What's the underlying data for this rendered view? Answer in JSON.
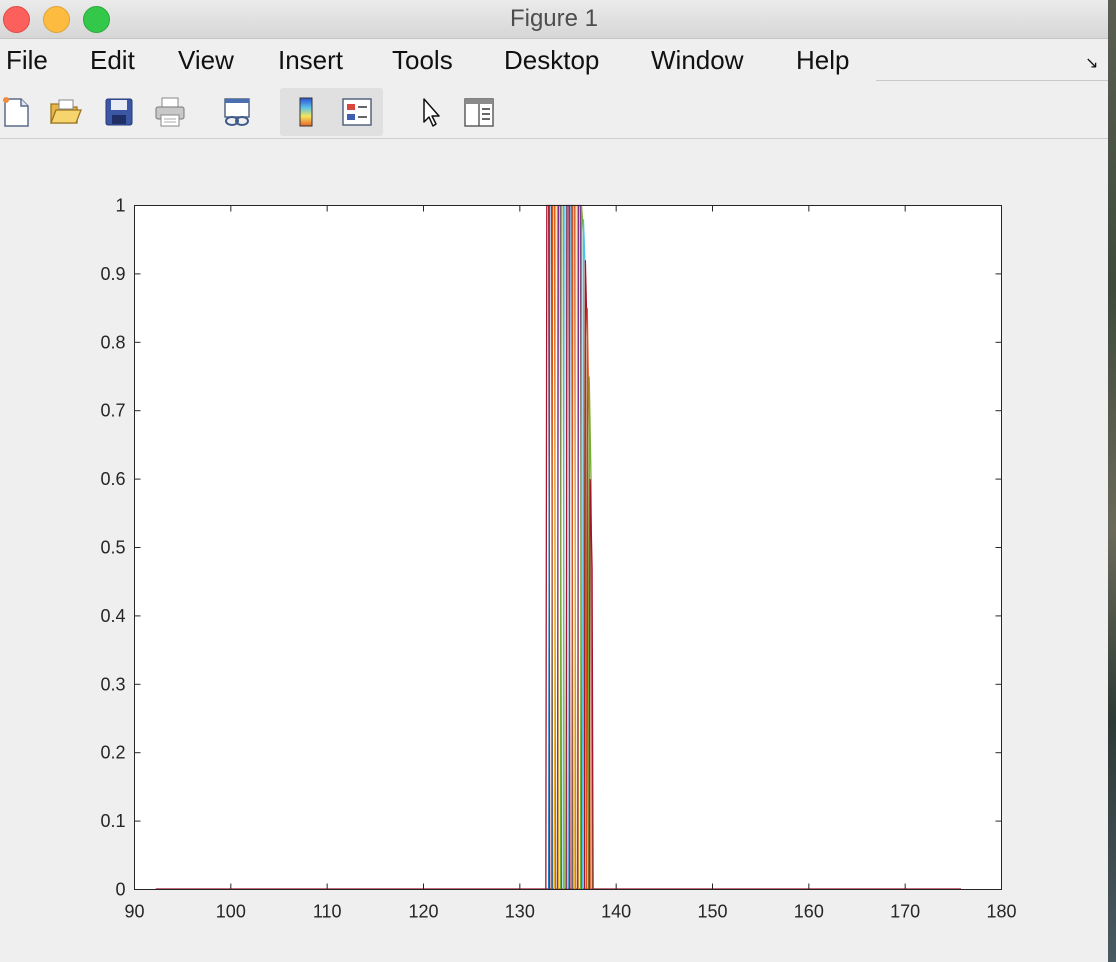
{
  "window": {
    "title": "Figure 1"
  },
  "menubar": {
    "items": [
      "File",
      "Edit",
      "View",
      "Insert",
      "Tools",
      "Desktop",
      "Window",
      "Help"
    ]
  },
  "toolbar": {
    "buttons": [
      {
        "icon": "new-figure-icon"
      },
      {
        "icon": "open-file-icon"
      },
      {
        "icon": "save-icon"
      },
      {
        "icon": "print-icon"
      },
      {
        "icon": "link-plot-icon"
      },
      {
        "icon": "insert-colorbar-icon"
      },
      {
        "icon": "insert-legend-icon"
      },
      {
        "icon": "edit-plot-pointer-icon"
      },
      {
        "icon": "property-inspector-icon"
      }
    ]
  },
  "chart_data": {
    "type": "line",
    "title": "",
    "xlabel": "",
    "ylabel": "",
    "xlim": [
      90,
      180
    ],
    "ylim": [
      0,
      1
    ],
    "xticks": [
      90,
      100,
      110,
      120,
      130,
      140,
      150,
      160,
      170,
      180
    ],
    "yticks": [
      0,
      0.1,
      0.2,
      0.3,
      0.4,
      0.5,
      0.6,
      0.7,
      0.8,
      0.9,
      1
    ],
    "ytick_labels": [
      "0",
      "0.1",
      "0.2",
      "0.3",
      "0.4",
      "0.5",
      "0.6",
      "0.7",
      "0.8",
      "0.9",
      "1"
    ],
    "xtick_labels": [
      "90",
      "100",
      "110",
      "120",
      "130",
      "140",
      "150",
      "160",
      "170",
      "180"
    ],
    "grid": false,
    "box": true,
    "baseline_range": [
      92.2,
      175.8
    ],
    "series": [
      {
        "color": "#A2142F",
        "x": [
          132.7,
          132.8,
          133.0,
          133.1
        ],
        "y": [
          0,
          1,
          1,
          0
        ]
      },
      {
        "color": "#0072BD",
        "x": [
          133.0,
          133.1,
          133.3,
          133.4
        ],
        "y": [
          0,
          1,
          1,
          0
        ]
      },
      {
        "color": "#D95319",
        "x": [
          133.3,
          133.4,
          133.6,
          133.7
        ],
        "y": [
          0,
          1,
          1,
          0
        ]
      },
      {
        "color": "#EDB120",
        "x": [
          133.6,
          133.7,
          133.9,
          134.0
        ],
        "y": [
          0,
          1,
          1,
          0
        ]
      },
      {
        "color": "#7E2F8E",
        "x": [
          133.9,
          134.0,
          134.2,
          134.3
        ],
        "y": [
          0,
          1,
          1,
          0
        ]
      },
      {
        "color": "#77AC30",
        "x": [
          134.2,
          134.3,
          134.5,
          134.6
        ],
        "y": [
          0,
          1,
          1,
          0
        ]
      },
      {
        "color": "#4DBEEE",
        "x": [
          134.5,
          134.6,
          134.8,
          134.9
        ],
        "y": [
          0,
          1,
          1,
          0
        ]
      },
      {
        "color": "#A2142F",
        "x": [
          134.8,
          134.9,
          135.1,
          135.2
        ],
        "y": [
          0,
          1,
          1,
          0
        ]
      },
      {
        "color": "#0072BD",
        "x": [
          135.1,
          135.2,
          135.4,
          135.5
        ],
        "y": [
          0,
          1,
          1,
          0
        ]
      },
      {
        "color": "#D95319",
        "x": [
          135.4,
          135.5,
          135.7,
          135.8
        ],
        "y": [
          0,
          1,
          1,
          0
        ]
      },
      {
        "color": "#EDB120",
        "x": [
          135.7,
          135.8,
          136.0,
          136.1
        ],
        "y": [
          0,
          1,
          1,
          0
        ]
      },
      {
        "color": "#7E2F8E",
        "x": [
          136.0,
          136.1,
          136.3,
          136.4
        ],
        "y": [
          0,
          1,
          1,
          0
        ]
      },
      {
        "color": "#77AC30",
        "x": [
          136.3,
          136.4,
          136.6,
          136.7
        ],
        "y": [
          0,
          1,
          0.96,
          0
        ]
      },
      {
        "color": "#4DBEEE",
        "x": [
          136.5,
          136.6,
          136.8,
          136.9
        ],
        "y": [
          0,
          0.98,
          0.9,
          0
        ]
      },
      {
        "color": "#A2142F",
        "x": [
          136.7,
          136.8,
          137.0,
          137.1
        ],
        "y": [
          0,
          0.92,
          0.8,
          0
        ]
      },
      {
        "color": "#D95319",
        "x": [
          136.9,
          137.0,
          137.2,
          137.3
        ],
        "y": [
          0,
          0.85,
          0.65,
          0
        ]
      },
      {
        "color": "#77AC30",
        "x": [
          137.1,
          137.2,
          137.4,
          137.5
        ],
        "y": [
          0,
          0.75,
          0.59,
          0
        ]
      },
      {
        "color": "#A2142F",
        "x": [
          137.2,
          137.3,
          137.5,
          137.6
        ],
        "y": [
          0,
          0.6,
          0.47,
          0
        ]
      }
    ]
  }
}
